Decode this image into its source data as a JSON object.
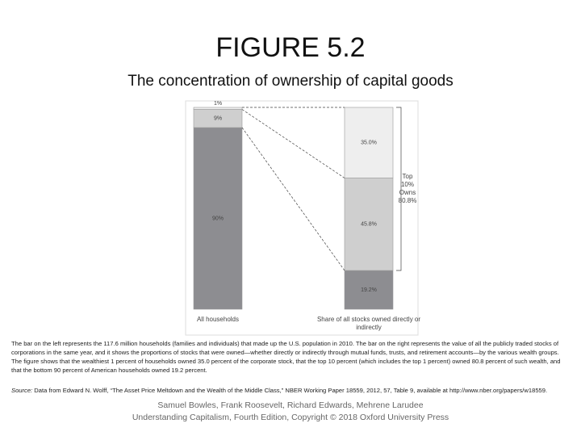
{
  "title": "FIGURE 5.2",
  "subtitle": "The concentration of ownership of capital goods",
  "chart_data": {
    "type": "bar",
    "stacked": true,
    "categories": [
      "All households",
      "Share of all stocks owned directly or indirectly"
    ],
    "series": [
      {
        "color": "#eeeeee",
        "values": [
          1,
          35.0
        ],
        "value_labels": [
          "1%",
          "35.0%"
        ]
      },
      {
        "color": "#cfcfcf",
        "values": [
          9,
          45.8
        ],
        "value_labels": [
          "9%",
          "45.8%"
        ]
      },
      {
        "color": "#8d8d91",
        "values": [
          90,
          19.2
        ],
        "value_labels": [
          "90%",
          "19.2%"
        ]
      }
    ],
    "annotation": [
      "Top",
      "10%",
      "Owns",
      "80.8%"
    ]
  },
  "caption": "The bar on the left represents the 117.6 million households (families and individuals) that made up the U.S. population in 2010. The bar on the right represents the value of all the publicly traded stocks of corporations in the same year, and it shows the proportions of stocks that were owned—whether directly or indirectly through mutual funds, trusts, and retirement accounts—by the various wealth groups. The figure shows that the wealthiest 1 percent of households owned 35.0 percent of the corporate stock, that the top 10 percent (which includes the top 1 percent) owned 80.8 percent of such wealth, and that the bottom 90 percent of American households owned 19.2 percent.",
  "source": {
    "label": "Source:",
    "text": "Data from Edward N. Wolff, “The Asset Price Meltdown and the Wealth of the Middle Class,” NBER Working Paper 18559, 2012, 57, Table 9, available at http://www.nber.org/papers/w18559."
  },
  "footer": [
    "Samuel Bowles, Frank Roosevelt, Richard Edwards, Mehrene Larudee",
    "Understanding Capitalism, Fourth Edition, Copyright © 2018 Oxford University Press"
  ]
}
